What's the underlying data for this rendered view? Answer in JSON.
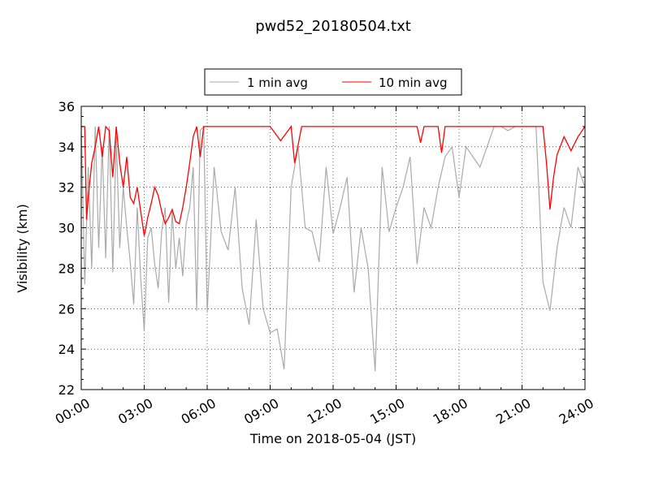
{
  "chart_data": {
    "type": "line",
    "title": "pwd52_20180504.txt",
    "xlabel": "Time on 2018-05-04 (JST)",
    "ylabel": "Visibility (km)",
    "xlim": [
      "00:00",
      "24:00"
    ],
    "ylim": [
      22,
      36
    ],
    "x_ticks": [
      "00:00",
      "03:00",
      "06:00",
      "09:00",
      "12:00",
      "15:00",
      "18:00",
      "21:00",
      "24:00"
    ],
    "y_ticks": [
      22,
      24,
      26,
      28,
      30,
      32,
      34,
      36
    ],
    "grid": true,
    "legend_position": "top-center",
    "series": [
      {
        "name": "1 min avg",
        "color": "#aaaaaa",
        "x": [
          "00:00",
          "00:10",
          "00:20",
          "00:30",
          "00:40",
          "00:50",
          "01:00",
          "01:10",
          "01:20",
          "01:30",
          "01:40",
          "01:50",
          "02:00",
          "02:10",
          "02:20",
          "02:30",
          "02:40",
          "02:50",
          "03:00",
          "03:10",
          "03:20",
          "03:30",
          "03:40",
          "03:50",
          "04:00",
          "04:10",
          "04:20",
          "04:30",
          "04:40",
          "04:50",
          "05:00",
          "05:10",
          "05:20",
          "05:30",
          "05:40",
          "05:50",
          "06:00",
          "06:20",
          "06:40",
          "07:00",
          "07:20",
          "07:40",
          "08:00",
          "08:20",
          "08:40",
          "09:00",
          "09:20",
          "09:40",
          "10:00",
          "10:20",
          "10:40",
          "11:00",
          "11:20",
          "11:40",
          "12:00",
          "12:20",
          "12:40",
          "13:00",
          "13:20",
          "13:40",
          "14:00",
          "14:20",
          "14:40",
          "15:00",
          "15:20",
          "15:40",
          "16:00",
          "16:20",
          "16:40",
          "17:00",
          "17:20",
          "17:40",
          "18:00",
          "18:20",
          "18:40",
          "19:00",
          "19:20",
          "19:40",
          "20:00",
          "20:20",
          "20:40",
          "21:00",
          "21:20",
          "21:40",
          "22:00",
          "22:20",
          "22:40",
          "23:00",
          "23:20",
          "23:40",
          "24:00"
        ],
        "y": [
          35,
          27.2,
          33,
          28,
          35,
          29,
          34,
          28.5,
          35,
          27.8,
          34.5,
          29,
          32,
          30,
          28.3,
          26.2,
          31,
          27.5,
          24.9,
          29.5,
          30,
          28.2,
          27,
          29.8,
          31,
          26.3,
          30.8,
          28,
          29.5,
          27.6,
          30.2,
          31,
          33,
          25.9,
          34.8,
          35,
          25.8,
          33,
          29.8,
          28.9,
          32,
          27,
          25.2,
          30.4,
          26,
          24.8,
          25,
          23,
          32,
          34,
          30,
          29.8,
          28.3,
          33,
          29.7,
          31,
          32.5,
          26.8,
          30,
          28,
          22.9,
          33,
          29.8,
          31,
          32,
          33.5,
          28.2,
          31,
          30,
          32,
          33.5,
          34,
          31.5,
          34,
          33.5,
          33,
          34,
          35,
          35,
          34.8,
          35,
          35,
          35,
          35,
          27.3,
          25.9,
          29,
          31,
          30,
          33,
          32
        ]
      },
      {
        "name": "10 min avg",
        "color": "#ff0000",
        "x": [
          "00:00",
          "00:10",
          "00:15",
          "00:20",
          "00:30",
          "00:40",
          "00:50",
          "01:00",
          "01:10",
          "01:20",
          "01:30",
          "01:40",
          "01:50",
          "02:00",
          "02:10",
          "02:20",
          "02:30",
          "02:40",
          "02:50",
          "03:00",
          "03:10",
          "03:20",
          "03:30",
          "03:40",
          "03:50",
          "04:00",
          "04:10",
          "04:20",
          "04:30",
          "04:40",
          "04:50",
          "05:00",
          "05:10",
          "05:20",
          "05:30",
          "05:40",
          "05:50",
          "06:00",
          "09:00",
          "09:30",
          "10:00",
          "10:10",
          "10:30",
          "16:00",
          "16:10",
          "16:20",
          "17:00",
          "17:10",
          "17:20",
          "22:00",
          "22:10",
          "22:20",
          "22:30",
          "22:40",
          "23:00",
          "23:20",
          "23:40",
          "24:00"
        ],
        "y": [
          35,
          35,
          30.4,
          31.5,
          33.2,
          34,
          35,
          33.5,
          35,
          34.8,
          32.5,
          35,
          33.2,
          32,
          33.5,
          31.5,
          31.2,
          32,
          30.8,
          29.6,
          30.5,
          31.2,
          32,
          31.6,
          30.8,
          30.2,
          30.5,
          30.9,
          30.3,
          30.2,
          31,
          32,
          33.2,
          34.5,
          35,
          33.5,
          35,
          35,
          35,
          34.3,
          35,
          33.2,
          35,
          35,
          34.2,
          35,
          35,
          33.7,
          35,
          35,
          33.2,
          30.9,
          32.5,
          33.6,
          34.5,
          33.8,
          34.5,
          35
        ]
      }
    ]
  }
}
